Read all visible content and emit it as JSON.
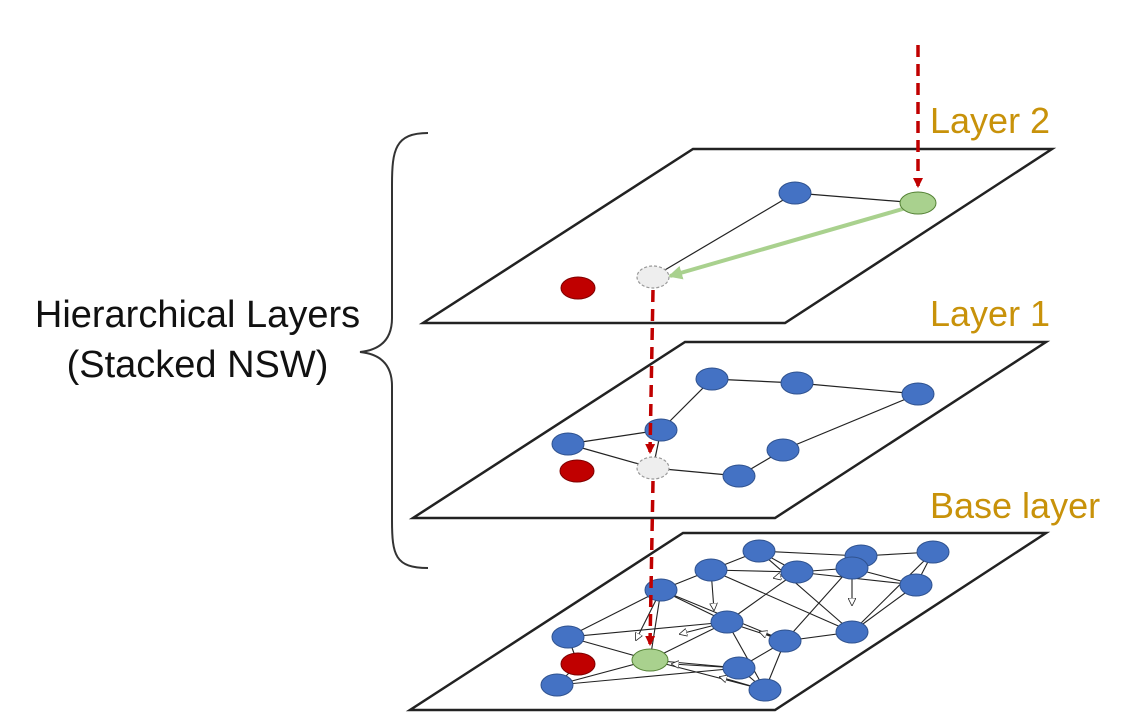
{
  "side_label": {
    "line1": "Hierarchical Layers",
    "line2": "(Stacked NSW)"
  },
  "layers": [
    {
      "id": "layer2",
      "label": "Layer 2"
    },
    {
      "id": "layer1",
      "label": "Layer 1"
    },
    {
      "id": "base",
      "label": "Base layer"
    }
  ],
  "colors": {
    "label": "#C8920A",
    "node_blue": "#4472C4",
    "node_red": "#C00000",
    "node_green": "#A9D18E",
    "search_path": "#C00000",
    "greedy_step": "#A9D18E",
    "plane_stroke": "#222222",
    "edge": "#222222"
  },
  "legend_items": []
}
